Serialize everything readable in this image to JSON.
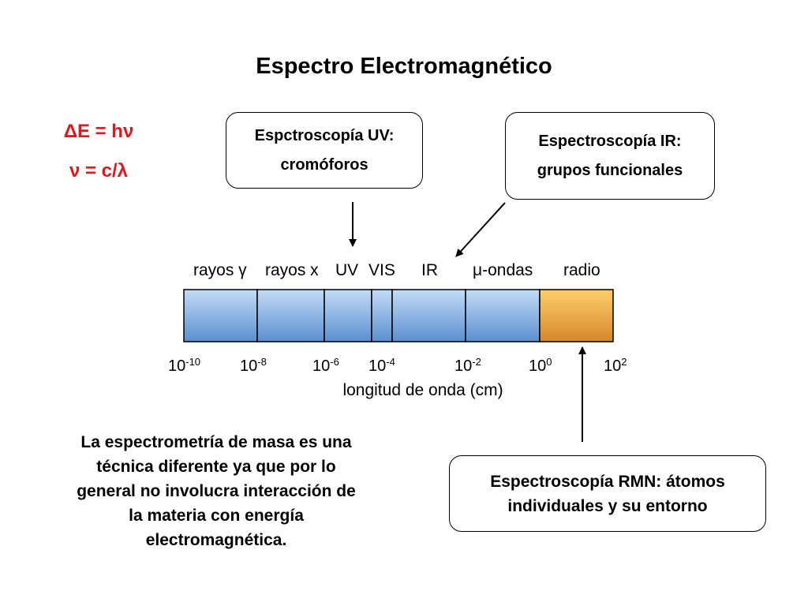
{
  "title": "Espectro Electromagnético",
  "formulas": {
    "energy": "ΔE = hν",
    "frequency": "ν = c/λ"
  },
  "boxes": {
    "uv": {
      "line1": "Espctroscopía UV:",
      "line2": "cromóforos"
    },
    "ir": {
      "line1": "Espectroscopía IR:",
      "line2": "grupos funcionales"
    },
    "rmn": {
      "line1": "Espectroscopía RMN: átomos",
      "line2": "individuales y su entorno"
    }
  },
  "regions": {
    "gamma": "rayos γ",
    "xray": "rayos x",
    "uv": "UV",
    "vis": "VIS",
    "ir": "IR",
    "micro": "μ-ondas",
    "radio": "radio"
  },
  "ticks": [
    {
      "base": "10",
      "exp": "-10"
    },
    {
      "base": "10",
      "exp": "-8"
    },
    {
      "base": "10",
      "exp": "-6"
    },
    {
      "base": "10",
      "exp": "-4"
    },
    {
      "base": "10",
      "exp": "-2"
    },
    {
      "base": "10",
      "exp": "0"
    },
    {
      "base": "10",
      "exp": "2"
    }
  ],
  "axis_label": "longitud de onda (cm)",
  "note": {
    "line1": "La espectrometría de masa es una",
    "line2": "técnica diferente ya que por lo",
    "line3": "general no involucra interacción de",
    "line4": "la materia con energía",
    "line5": "electromagnética."
  },
  "colors": {
    "formula": "#e8141b",
    "bar_blue_top": "#c4dcf6",
    "bar_blue_bottom": "#5b8fd0",
    "bar_orange_top": "#ffce6e",
    "bar_orange_bottom": "#d5882a"
  }
}
